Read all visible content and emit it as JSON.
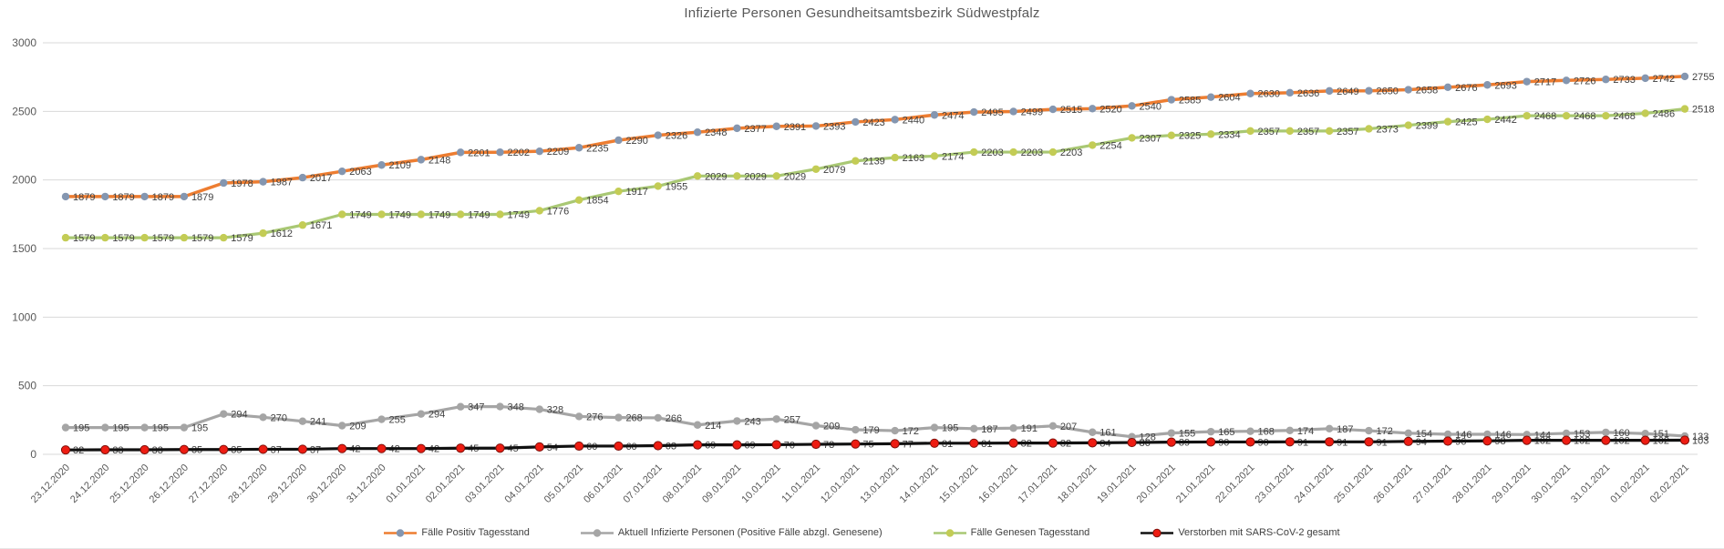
{
  "chart_data": {
    "type": "line",
    "title": "Infizierte Personen Gesundheitsamtsbezirk Südwestpfalz",
    "title_color": "#595959",
    "axis_label_color": "#595959",
    "data_label_color": "#404040",
    "gridline_color": "#D9D9D9",
    "grid": true,
    "legend_position": "bottom",
    "ylim": [
      0,
      3000
    ],
    "yticks": [
      0,
      500,
      1000,
      1500,
      2000,
      2500,
      3000
    ],
    "categories": [
      "23.12.2020",
      "24.12.2020",
      "25.12.2020",
      "26.12.2020",
      "27.12.2020",
      "28.12.2020",
      "29.12.2020",
      "30.12.2020",
      "31.12.2020",
      "01.01.2021",
      "02.01.2021",
      "03.01.2021",
      "04.01.2021",
      "05.01.2021",
      "06.01.2021",
      "07.01.2021",
      "08.01.2021",
      "09.01.2021",
      "10.01.2021",
      "11.01.2021",
      "12.01.2021",
      "13.01.2021",
      "14.01.2021",
      "15.01.2021",
      "16.01.2021",
      "17.01.2021",
      "18.01.2021",
      "19.01.2021",
      "20.01.2021",
      "21.01.2021",
      "22.01.2021",
      "23.01.2021",
      "24.01.2021",
      "25.01.2021",
      "26.01.2021",
      "27.01.2021",
      "28.01.2021",
      "29.01.2021",
      "30.01.2021",
      "31.01.2021",
      "01.02.2021",
      "02.02.2021"
    ],
    "series": [
      {
        "name": "Fälle Positiv Tagesstand",
        "line_color": "#ED7D31",
        "marker_color": "#8496B0",
        "line_width": 3.5,
        "marker_radius": 4.2,
        "values": [
          1879,
          1879,
          1879,
          1879,
          1978,
          1987,
          2017,
          2063,
          2109,
          2148,
          2201,
          2202,
          2209,
          2235,
          2290,
          2326,
          2348,
          2377,
          2391,
          2393,
          2423,
          2440,
          2474,
          2495,
          2499,
          2515,
          2520,
          2540,
          2585,
          2604,
          2630,
          2636,
          2649,
          2650,
          2658,
          2676,
          2693,
          2717,
          2726,
          2733,
          2742,
          2755
        ]
      },
      {
        "name": "Aktuell Infizierte Personen (Positive Fälle abzgl. Genesene)",
        "line_color": "#A5A5A5",
        "marker_color": "#A5A5A5",
        "line_width": 3.2,
        "marker_radius": 4.2,
        "values": [
          195,
          195,
          195,
          195,
          294,
          270,
          241,
          209,
          255,
          294,
          347,
          348,
          328,
          276,
          268,
          266,
          214,
          243,
          257,
          209,
          179,
          172,
          195,
          187,
          191,
          207,
          161,
          128,
          155,
          165,
          168,
          174,
          187,
          172,
          154,
          146,
          146,
          144,
          153,
          160,
          151,
          133
        ]
      },
      {
        "name": "Fälle Genesen Tagesstand",
        "line_color": "#A9C874",
        "marker_color": "#C3CC55",
        "line_width": 3.2,
        "marker_radius": 4.2,
        "values": [
          1579,
          1579,
          1579,
          1579,
          1579,
          1612,
          1671,
          1749,
          1749,
          1749,
          1749,
          1749,
          1776,
          1854,
          1917,
          1955,
          2029,
          2029,
          2029,
          2079,
          2139,
          2163,
          2174,
          2203,
          2203,
          2203,
          2254,
          2307,
          2325,
          2334,
          2357,
          2357,
          2357,
          2373,
          2399,
          2425,
          2442,
          2468,
          2468,
          2468,
          2486,
          2518
        ]
      },
      {
        "name": "Verstorben mit SARS-CoV-2 gesamt",
        "line_color": "#111111",
        "marker_color": "#EE1C12",
        "marker_outline": "#7E120C",
        "line_width": 3.2,
        "marker_radius": 4.6,
        "values": [
          32,
          33,
          33,
          35,
          35,
          37,
          37,
          42,
          42,
          42,
          45,
          45,
          54,
          60,
          60,
          63,
          69,
          69,
          70,
          73,
          75,
          77,
          81,
          81,
          82,
          82,
          84,
          86,
          89,
          90,
          90,
          91,
          91,
          91,
          94,
          96,
          98,
          102,
          102,
          102,
          102,
          103
        ]
      }
    ]
  }
}
